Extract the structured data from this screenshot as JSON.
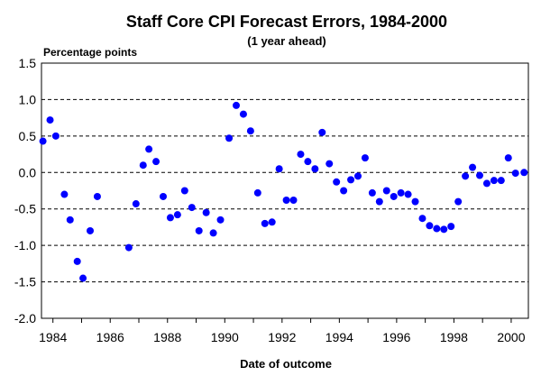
{
  "chart_data": {
    "type": "scatter",
    "title": "Staff Core CPI Forecast Errors, 1984-2000",
    "subtitle": "(1 year ahead)",
    "ylabel": "Percentage points",
    "xlabel": "Date of outcome",
    "xlim": [
      1983.6,
      2000.6
    ],
    "ylim": [
      -2.0,
      1.5
    ],
    "yticks": [
      1.5,
      1.0,
      0.5,
      0.0,
      -0.5,
      -1.0,
      -1.5,
      -2.0
    ],
    "ytick_labels": [
      "1.5",
      "1.0",
      "0.5",
      "0.0",
      "-0.5",
      "-1.0",
      "-1.5",
      "-2.0"
    ],
    "xticks": [
      1984,
      1986,
      1988,
      1990,
      1992,
      1994,
      1996,
      1998,
      2000
    ],
    "xtick_labels": [
      "1984",
      "1986",
      "1988",
      "1990",
      "1992",
      "1994",
      "1996",
      "1998",
      "2000"
    ],
    "gridlines": "horizontal dashed",
    "legend": "none",
    "marker_color": "#0000ff",
    "points": [
      {
        "x": 1983.65,
        "y": 0.43
      },
      {
        "x": 1983.9,
        "y": 0.72
      },
      {
        "x": 1984.1,
        "y": 0.5
      },
      {
        "x": 1984.4,
        "y": -0.3
      },
      {
        "x": 1984.6,
        "y": -0.65
      },
      {
        "x": 1984.85,
        "y": -1.22
      },
      {
        "x": 1985.05,
        "y": -1.45
      },
      {
        "x": 1985.3,
        "y": -0.8
      },
      {
        "x": 1985.55,
        "y": -0.33
      },
      {
        "x": 1986.65,
        "y": -1.03
      },
      {
        "x": 1986.9,
        "y": -0.43
      },
      {
        "x": 1987.15,
        "y": 0.1
      },
      {
        "x": 1987.35,
        "y": 0.32
      },
      {
        "x": 1987.6,
        "y": 0.15
      },
      {
        "x": 1987.85,
        "y": -0.33
      },
      {
        "x": 1988.1,
        "y": -0.62
      },
      {
        "x": 1988.35,
        "y": -0.58
      },
      {
        "x": 1988.6,
        "y": -0.25
      },
      {
        "x": 1988.85,
        "y": -0.48
      },
      {
        "x": 1989.1,
        "y": -0.8
      },
      {
        "x": 1989.35,
        "y": -0.55
      },
      {
        "x": 1989.6,
        "y": -0.83
      },
      {
        "x": 1989.85,
        "y": -0.65
      },
      {
        "x": 1990.15,
        "y": 0.47
      },
      {
        "x": 1990.4,
        "y": 0.92
      },
      {
        "x": 1990.65,
        "y": 0.8
      },
      {
        "x": 1990.9,
        "y": 0.57
      },
      {
        "x": 1991.15,
        "y": -0.28
      },
      {
        "x": 1991.4,
        "y": -0.7
      },
      {
        "x": 1991.65,
        "y": -0.68
      },
      {
        "x": 1991.9,
        "y": 0.05
      },
      {
        "x": 1992.15,
        "y": -0.38
      },
      {
        "x": 1992.4,
        "y": -0.38
      },
      {
        "x": 1992.65,
        "y": 0.25
      },
      {
        "x": 1992.9,
        "y": 0.15
      },
      {
        "x": 1993.15,
        "y": 0.05
      },
      {
        "x": 1993.4,
        "y": 0.55
      },
      {
        "x": 1993.65,
        "y": 0.12
      },
      {
        "x": 1993.9,
        "y": -0.13
      },
      {
        "x": 1994.15,
        "y": -0.25
      },
      {
        "x": 1994.4,
        "y": -0.1
      },
      {
        "x": 1994.65,
        "y": -0.05
      },
      {
        "x": 1994.9,
        "y": 0.2
      },
      {
        "x": 1995.15,
        "y": -0.28
      },
      {
        "x": 1995.4,
        "y": -0.4
      },
      {
        "x": 1995.65,
        "y": -0.25
      },
      {
        "x": 1995.9,
        "y": -0.33
      },
      {
        "x": 1996.15,
        "y": -0.28
      },
      {
        "x": 1996.4,
        "y": -0.3
      },
      {
        "x": 1996.65,
        "y": -0.4
      },
      {
        "x": 1996.9,
        "y": -0.63
      },
      {
        "x": 1997.15,
        "y": -0.73
      },
      {
        "x": 1997.4,
        "y": -0.77
      },
      {
        "x": 1997.65,
        "y": -0.78
      },
      {
        "x": 1997.9,
        "y": -0.74
      },
      {
        "x": 1998.15,
        "y": -0.4
      },
      {
        "x": 1998.4,
        "y": -0.05
      },
      {
        "x": 1998.65,
        "y": 0.07
      },
      {
        "x": 1998.9,
        "y": -0.04
      },
      {
        "x": 1999.15,
        "y": -0.15
      },
      {
        "x": 1999.4,
        "y": -0.11
      },
      {
        "x": 1999.65,
        "y": -0.11
      },
      {
        "x": 1999.9,
        "y": 0.2
      },
      {
        "x": 2000.15,
        "y": -0.01
      },
      {
        "x": 2000.45,
        "y": 0.0
      }
    ]
  }
}
